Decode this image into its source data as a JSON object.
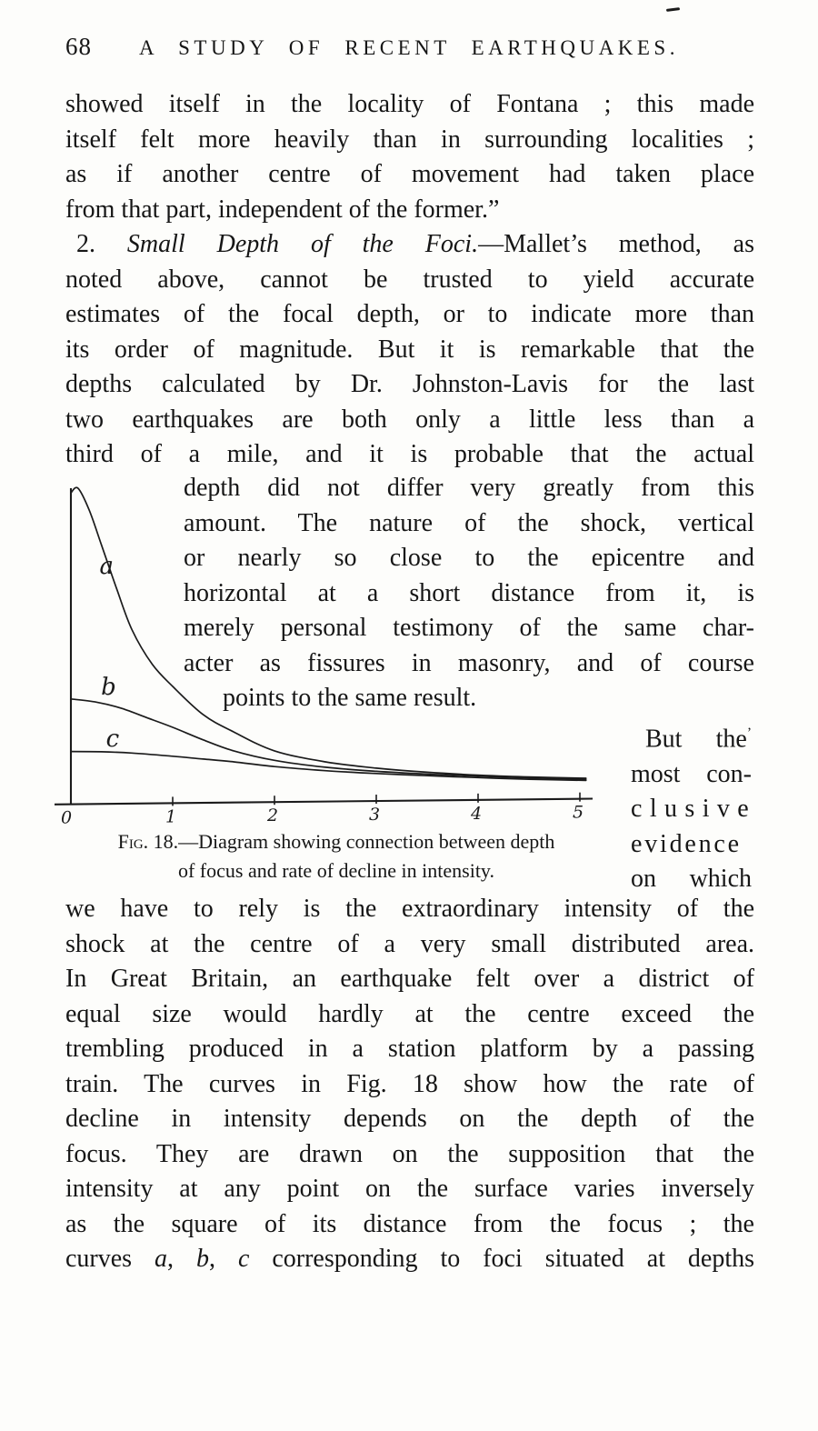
{
  "page": {
    "number": "68",
    "running_title": "A STUDY OF RECENT EARTHQUAKES."
  },
  "body": {
    "para1": {
      "lines": [
        {
          "t": "showed itself in the locality of Fontana ; this made"
        },
        {
          "t": "itself felt more heavily than in surrounding localities ;"
        },
        {
          "t": "as if another centre of movement had taken place"
        },
        {
          "t": "from that part, independent of the former.”",
          "mod": "last"
        }
      ]
    },
    "para2": {
      "lines": [
        {
          "parts": [
            {
              "t": "2. "
            },
            {
              "t": "Small Depth of the Foci.",
              "s": "i"
            },
            {
              "t": "—Mallet’s method, as"
            }
          ],
          "mod": "indent"
        },
        {
          "t": "noted above, cannot be trusted to yield accurate"
        },
        {
          "t": "estimates of the focal depth, or to indicate more than"
        },
        {
          "t": "its order of magnitude.  But it is remarkable that the"
        },
        {
          "t": "depths calculated by Dr. Johnston-Lavis for the last"
        },
        {
          "t": "two earthquakes are both only a little less than a"
        },
        {
          "t": "third of a mile, and it is probable that the actual"
        }
      ]
    },
    "wrap_para": {
      "lines": [
        {
          "t": "depth did not differ very greatly from this"
        },
        {
          "t": "amount.  The nature of the shock, vertical"
        },
        {
          "t": "or nearly so close to the epicentre and"
        },
        {
          "t": "horizontal at a short distance from it, is"
        },
        {
          "t": "merely personal testimony of the same char-"
        },
        {
          "t": "acter as fissures in masonry, and of course"
        },
        {
          "t": "points to the same result.",
          "mod": "last indent2"
        }
      ]
    },
    "side_col": {
      "lines": [
        {
          "parts": [
            {
              "t": "But the"
            },
            {
              "t": "ʼ",
              "s": "spk"
            }
          ],
          "mod": "indent-sm"
        },
        {
          "t": "most con-"
        },
        {
          "parts": [
            {
              "t": "clusive",
              "s": "sp"
            }
          ]
        },
        {
          "parts": [
            {
              "t": "evidence",
              "s": "sp2"
            }
          ]
        },
        {
          "t": "on which"
        }
      ]
    },
    "caption": {
      "lines": [
        {
          "parts": [
            {
              "t": "Fig.",
              "s": "sc"
            },
            {
              "t": " 18.—Diagram showing connection between depth"
            }
          ],
          "mod": "center"
        },
        {
          "t": "of focus and rate of decline in intensity.",
          "mod": "center"
        }
      ]
    },
    "para3": {
      "lines": [
        {
          "t": "we have to rely is the extraordinary intensity of the"
        },
        {
          "t": "shock at the centre of a very small distributed area."
        },
        {
          "t": "In Great Britain, an earthquake felt over a district of"
        },
        {
          "t": "equal size would hardly at the centre exceed the"
        },
        {
          "t": "trembling produced in a station platform by a passing"
        },
        {
          "t": "train.  The curves in Fig. 18 show how the rate of"
        },
        {
          "t": "decline in intensity depends on the depth of the"
        },
        {
          "t": "focus.  They are drawn on the supposition that the"
        },
        {
          "t": "intensity at any point on the surface varies inversely"
        },
        {
          "t": "as the square of its distance from the focus ; the"
        },
        {
          "parts": [
            {
              "t": "curves "
            },
            {
              "t": "a",
              "s": "i"
            },
            {
              "t": ", "
            },
            {
              "t": "b",
              "s": "i"
            },
            {
              "t": ", "
            },
            {
              "t": "c",
              "s": "i"
            },
            {
              "t": " corresponding to foci situated at depths"
            }
          ]
        }
      ]
    }
  },
  "chart_data": {
    "type": "line",
    "title": "Fig. 18.—Diagram showing connection between depth of focus and rate of decline in intensity.",
    "xlabel": "",
    "ylabel": "",
    "grid": false,
    "legend_position": "labels-on-curves",
    "xlim": [
      0,
      5.15
    ],
    "ylim": [
      0,
      1
    ],
    "x_ticks": [
      0,
      1,
      2,
      3,
      4,
      5
    ],
    "series": [
      {
        "name": "a",
        "label": {
          "x": 0.35,
          "h": 0.755
        },
        "points": [
          [
            0,
            0.985
          ],
          [
            0.07,
            1.0
          ],
          [
            0.18,
            0.93
          ],
          [
            0.3,
            0.82
          ],
          [
            0.45,
            0.68
          ],
          [
            0.6,
            0.55
          ],
          [
            0.8,
            0.44
          ],
          [
            1.0,
            0.37
          ],
          [
            1.3,
            0.28
          ],
          [
            1.6,
            0.225
          ],
          [
            2.0,
            0.165
          ],
          [
            2.5,
            0.13
          ],
          [
            3.0,
            0.11
          ],
          [
            3.5,
            0.097
          ],
          [
            4.0,
            0.088
          ],
          [
            4.5,
            0.082
          ],
          [
            5.06,
            0.078
          ]
        ]
      },
      {
        "name": "b",
        "label": {
          "x": 0.37,
          "h": 0.37
        },
        "points": [
          [
            0,
            0.33
          ],
          [
            0.25,
            0.32
          ],
          [
            0.5,
            0.3
          ],
          [
            0.75,
            0.27
          ],
          [
            1.0,
            0.24
          ],
          [
            1.3,
            0.2
          ],
          [
            1.6,
            0.165
          ],
          [
            2.0,
            0.135
          ],
          [
            2.5,
            0.113
          ],
          [
            3.0,
            0.1
          ],
          [
            3.5,
            0.091
          ],
          [
            4.0,
            0.085
          ],
          [
            4.5,
            0.079
          ],
          [
            5.06,
            0.075
          ]
        ]
      },
      {
        "name": "c",
        "label": {
          "x": 0.41,
          "h": 0.205
        },
        "points": [
          [
            0,
            0.163
          ],
          [
            0.3,
            0.162
          ],
          [
            0.6,
            0.158
          ],
          [
            1.0,
            0.148
          ],
          [
            1.3,
            0.139
          ],
          [
            1.6,
            0.13
          ],
          [
            2.0,
            0.115
          ],
          [
            2.5,
            0.102
          ],
          [
            3.0,
            0.093
          ],
          [
            3.5,
            0.086
          ],
          [
            4.0,
            0.08
          ],
          [
            4.5,
            0.075
          ],
          [
            5.06,
            0.071
          ]
        ]
      }
    ]
  }
}
